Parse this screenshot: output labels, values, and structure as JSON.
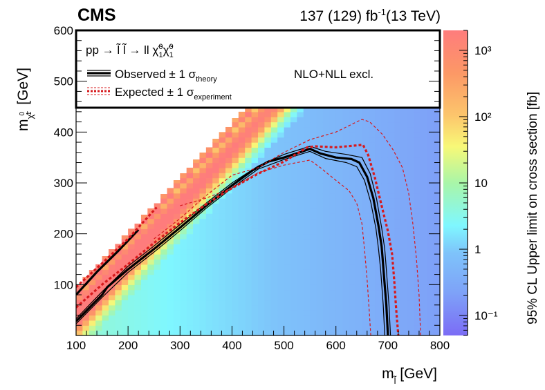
{
  "header": {
    "experiment": "CMS",
    "lumi_main": "137 (129) fb",
    "lumi_exp": "-1",
    "energy": "(13 TeV)"
  },
  "legend": {
    "process_prefix": "pp → ",
    "process_slep": "l̃ l̃",
    "process_mid": " → ll ",
    "process_chi": "χ̃",
    "process_sup": "0",
    "process_sub": "1",
    "observed_label": "Observed ± 1 ",
    "observed_sigma": "σ",
    "observed_sub": "theory",
    "expected_label": "Expected ± 1 ",
    "expected_sigma": "σ",
    "expected_sub": "experiment",
    "xsec_note": "NLO+NLL excl."
  },
  "colors": {
    "observed": "#000000",
    "expected": "#d7191c",
    "frame": "#000000"
  },
  "chart_data": {
    "type": "heatmap",
    "title": "CMS 137 (129) fb-1 (13 TeV)",
    "xlabel": "m_slepton [GeV]",
    "ylabel": "m_chi10 [GeV]",
    "zlabel": "95% CL Upper limit on cross section [fb]",
    "xlim": [
      100,
      800
    ],
    "ylim": [
      0,
      600
    ],
    "zlim": [
      0.05,
      2000
    ],
    "zscale": "log",
    "xticks": [
      100,
      200,
      300,
      400,
      500,
      600,
      700,
      800
    ],
    "yticks": [
      100,
      200,
      300,
      400,
      500,
      600
    ],
    "zticks": [
      {
        "value": 0.1,
        "label": "10⁻¹"
      },
      {
        "value": 1,
        "label": "1"
      },
      {
        "value": 10,
        "label": "10"
      },
      {
        "value": 100,
        "label": "10²"
      },
      {
        "value": 1000,
        "label": "10³"
      }
    ],
    "heatmap_description": "Upper limit is largest (~500-1000 fb) in a band along the diagonal m_chi = m_slepton - ~20 to -120 GeV, decreasing to ~1 fb around m_slepton 250-400 and ~0.2-0.3 fb near m_slepton 700-800 at low m_chi; region above diagonal m_chi > m_slepton is empty",
    "diagonal_edge": [
      [
        100,
        95
      ],
      [
        565,
        600
      ]
    ],
    "series": [
      {
        "name": "Observed",
        "style": "solid-thick",
        "segments": [
          [
            [
              100,
              28
            ],
            [
              150,
              80
            ],
            [
              160,
              95
            ],
            [
              200,
              130
            ],
            [
              250,
              170
            ],
            [
              300,
              212
            ],
            [
              350,
              255
            ],
            [
              400,
              295
            ],
            [
              440,
              325
            ],
            [
              470,
              342
            ],
            [
              500,
              350
            ],
            [
              530,
              360
            ],
            [
              550,
              367
            ],
            [
              570,
              358
            ],
            [
              600,
              350
            ],
            [
              630,
              347
            ],
            [
              645,
              340
            ],
            [
              660,
              312
            ],
            [
              672,
              270
            ],
            [
              682,
              215
            ],
            [
              688,
              175
            ],
            [
              690,
              150
            ],
            [
              693,
              110
            ],
            [
              697,
              60
            ],
            [
              700,
              0
            ]
          ],
          [
            [
              100,
              80
            ],
            [
              140,
              125
            ],
            [
              180,
              165
            ],
            [
              220,
              208
            ]
          ]
        ]
      },
      {
        "name": "Observed +1 sigma_theory",
        "style": "solid-thin",
        "segments": [
          [
            [
              100,
              33
            ],
            [
              150,
              86
            ],
            [
              200,
              136
            ],
            [
              250,
              176
            ],
            [
              300,
              218
            ],
            [
              350,
              260
            ],
            [
              400,
              300
            ],
            [
              450,
              333
            ],
            [
              500,
              356
            ],
            [
              550,
              372
            ],
            [
              580,
              362
            ],
            [
              620,
              356
            ],
            [
              650,
              350
            ],
            [
              666,
              318
            ],
            [
              678,
              270
            ],
            [
              688,
              212
            ],
            [
              694,
              170
            ],
            [
              697,
              130
            ],
            [
              702,
              60
            ],
            [
              705,
              0
            ]
          ]
        ]
      },
      {
        "name": "Observed -1 sigma_theory",
        "style": "solid-thin",
        "segments": [
          [
            [
              100,
              23
            ],
            [
              150,
              75
            ],
            [
              200,
              124
            ],
            [
              250,
              164
            ],
            [
              300,
              206
            ],
            [
              350,
              250
            ],
            [
              400,
              290
            ],
            [
              450,
              327
            ],
            [
              500,
              346
            ],
            [
              550,
              362
            ],
            [
              580,
              348
            ],
            [
              620,
              340
            ],
            [
              640,
              332
            ],
            [
              655,
              305
            ],
            [
              667,
              262
            ],
            [
              677,
              210
            ],
            [
              682,
              170
            ],
            [
              686,
              130
            ],
            [
              691,
              60
            ],
            [
              694,
              0
            ]
          ]
        ]
      },
      {
        "name": "Expected",
        "style": "dotted-thick",
        "segments": [
          [
            [
              100,
              55
            ],
            [
              150,
              100
            ],
            [
              200,
              140
            ],
            [
              250,
              182
            ],
            [
              300,
              222
            ],
            [
              350,
              258
            ],
            [
              400,
              290
            ],
            [
              450,
              318
            ],
            [
              500,
              342
            ],
            [
              545,
              370
            ],
            [
              560,
              372
            ],
            [
              600,
              370
            ],
            [
              652,
              375
            ],
            [
              662,
              355
            ],
            [
              675,
              310
            ],
            [
              688,
              255
            ],
            [
              700,
              205
            ],
            [
              708,
              160
            ],
            [
              712,
              110
            ],
            [
              716,
              50
            ],
            [
              720,
              0
            ]
          ],
          [
            [
              100,
              95
            ],
            [
              150,
              142
            ],
            [
              200,
              190
            ],
            [
              255,
              252
            ]
          ]
        ]
      },
      {
        "name": "Expected +1 sigma_experiment",
        "style": "dashed-thin",
        "segments": [
          [
            [
              250,
              190
            ],
            [
              300,
              230
            ],
            [
              350,
              275
            ],
            [
              400,
              315
            ],
            [
              450,
              330
            ],
            [
              500,
              360
            ],
            [
              550,
              385
            ],
            [
              600,
              400
            ],
            [
              650,
              425
            ],
            [
              665,
              420
            ],
            [
              690,
              395
            ],
            [
              710,
              365
            ],
            [
              728,
              330
            ],
            [
              740,
              280
            ],
            [
              748,
              220
            ],
            [
              755,
              150
            ],
            [
              760,
              80
            ],
            [
              763,
              0
            ]
          ]
        ]
      },
      {
        "name": "Expected -1 sigma_experiment",
        "style": "dashed-thin",
        "segments": [
          [
            [
              300,
              255
            ],
            [
              350,
              270
            ],
            [
              400,
              290
            ],
            [
              450,
              320
            ],
            [
              500,
              335
            ],
            [
              550,
              345
            ],
            [
              570,
              330
            ],
            [
              600,
              305
            ],
            [
              625,
              285
            ],
            [
              640,
              260
            ],
            [
              650,
              220
            ],
            [
              655,
              170
            ],
            [
              660,
              110
            ],
            [
              664,
              50
            ],
            [
              667,
              0
            ]
          ]
        ]
      }
    ]
  }
}
